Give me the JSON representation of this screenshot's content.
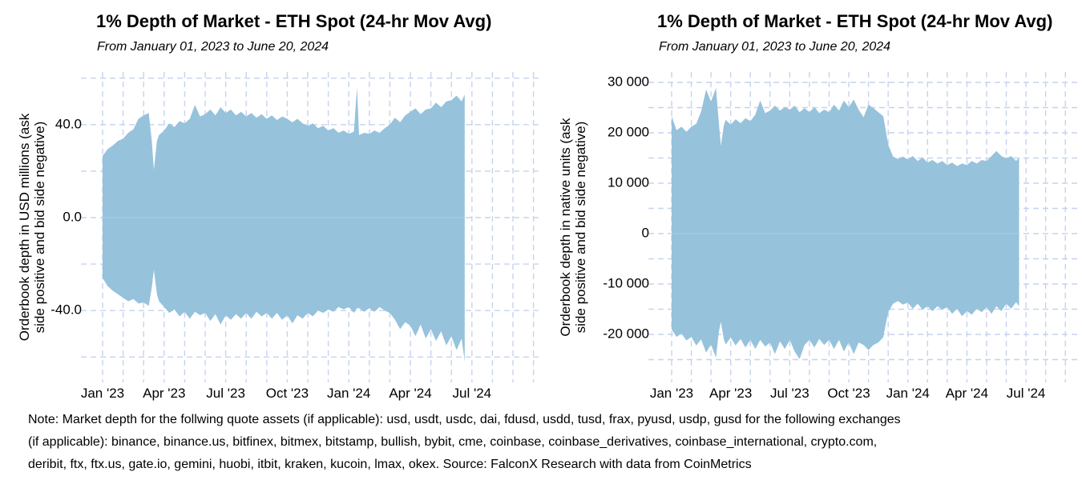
{
  "note": {
    "lines": [
      "Note: Market depth for the follwing quote assets (if applicable): usd, usdt, usdc, dai, fdusd, usdd, tusd, frax, pyusd, usdp, gusd for the following exchanges",
      "(if applicable): binance, binance.us, bitfinex, bitmex, bitstamp, bullish, bybit, cme, coinbase, coinbase_derivatives, coinbase_international, crypto.com,",
      "deribit, ftx, ftx.us, gate.io, gemini, huobi, itbit, kraken, kucoin, lmax, okex. Source: FalconX Research with data from CoinMetrics"
    ]
  },
  "chart_data": [
    {
      "type": "area",
      "title": "1% Depth of Market - ETH Spot (24-hr Mov Avg)",
      "subtitle": "From January 01, 2023 to June 20, 2024",
      "ylabel_lines": [
        "Orderbook depth in USD millions (ask",
        "side positive and bid side negative)"
      ],
      "x_unit": "months_since_2023_01_01",
      "x_tick_labels": [
        "Jan '23",
        "Apr '23",
        "Jul '23",
        "Oct '23",
        "Jan '24",
        "Apr '24",
        "Jul '24"
      ],
      "x_tick_months": [
        0,
        3,
        6,
        9,
        12,
        15,
        18
      ],
      "x_minor_grid_step_months": 1,
      "ylim": [
        -70,
        63
      ],
      "y_grid_step": 20,
      "y_grid_range": [
        -60,
        60
      ],
      "y_tick_labels": [
        {
          "value": 40,
          "label": "40.0"
        },
        {
          "value": 0,
          "label": "0.0"
        },
        {
          "value": -40,
          "label": "-40.0"
        }
      ],
      "grid": true,
      "grid_style": "dashed",
      "legend": "none",
      "colors": {
        "fill": "#96c2dc",
        "grid": "#c6d3ee",
        "zero_line": "#abcde3",
        "text": "#000000"
      },
      "series": {
        "x_months": [
          0,
          0.25,
          0.5,
          0.75,
          1,
          1.25,
          1.5,
          1.75,
          2,
          2.25,
          2.4,
          2.5,
          2.65,
          2.75,
          3,
          3.25,
          3.5,
          3.75,
          4,
          4.25,
          4.5,
          4.75,
          5,
          5.25,
          5.5,
          5.75,
          6,
          6.25,
          6.5,
          6.75,
          7,
          7.25,
          7.5,
          7.75,
          8,
          8.25,
          8.5,
          8.75,
          9,
          9.25,
          9.5,
          9.75,
          10,
          10.25,
          10.5,
          10.75,
          11,
          11.25,
          11.5,
          11.75,
          12,
          12.25,
          12.4,
          12.5,
          12.75,
          13,
          13.25,
          13.5,
          13.75,
          14,
          14.25,
          14.5,
          14.75,
          15,
          15.25,
          15.5,
          15.75,
          16,
          16.25,
          16.5,
          16.75,
          17,
          17.25,
          17.5,
          17.65
        ],
        "ask": [
          26.5,
          29.5,
          31,
          33,
          34,
          36.5,
          38,
          42.5,
          44,
          45,
          33,
          20.5,
          33,
          35.5,
          37.5,
          40.5,
          39,
          41.5,
          40.5,
          42.5,
          48.5,
          43.5,
          44.5,
          46.5,
          44,
          47.5,
          45,
          46.5,
          44,
          45.5,
          43.5,
          45,
          43,
          44.5,
          42.5,
          44,
          42,
          43.5,
          42.5,
          41,
          42.5,
          40.5,
          39.5,
          40.5,
          38.5,
          39.5,
          37.5,
          38.5,
          36.5,
          37.5,
          36,
          37,
          56,
          35.5,
          36.5,
          36,
          37.5,
          36.5,
          38.5,
          40,
          43,
          41,
          44,
          45.5,
          47,
          44.5,
          46.5,
          47,
          49.5,
          47.5,
          50,
          50.5,
          52.5,
          50,
          53
        ],
        "bid": [
          -26,
          -29.5,
          -31.5,
          -33,
          -34.5,
          -36,
          -35,
          -37,
          -36.5,
          -38,
          -30,
          -22.5,
          -33,
          -36,
          -38.5,
          -41,
          -39.5,
          -42.5,
          -40.5,
          -43.5,
          -40.5,
          -42,
          -41,
          -44.5,
          -41.5,
          -46,
          -42,
          -44,
          -41.5,
          -43.5,
          -41,
          -43.5,
          -40.5,
          -42.5,
          -41,
          -43.5,
          -41,
          -44,
          -42,
          -45.5,
          -42,
          -43.5,
          -41,
          -42.5,
          -40,
          -41,
          -39.5,
          -40.5,
          -38.5,
          -39.5,
          -38.5,
          -41,
          -39,
          -39,
          -40.5,
          -39,
          -40.5,
          -38.5,
          -40,
          -41,
          -44,
          -48,
          -45,
          -46.5,
          -51,
          -46,
          -52,
          -48,
          -53,
          -49,
          -55,
          -51,
          -57,
          -52,
          -62
        ]
      }
    },
    {
      "type": "area",
      "title": "1% Depth of Market - ETH Spot (24-hr Mov Avg)",
      "subtitle": "From January 01, 2023 to June 20, 2024",
      "ylabel_lines": [
        "Orderbook depth in native units (ask",
        "side positive and bid side negative)"
      ],
      "x_unit": "months_since_2023_01_01",
      "x_tick_labels": [
        "Jan '23",
        "Apr '23",
        "Jul '23",
        "Oct '23",
        "Jan '24",
        "Apr '24",
        "Jul '24"
      ],
      "x_tick_months": [
        0,
        3,
        6,
        9,
        12,
        15,
        18
      ],
      "x_minor_grid_step_months": 1,
      "ylim": [
        -29500,
        32000
      ],
      "y_grid_step": 5000,
      "y_grid_range": [
        -25000,
        30000
      ],
      "y_tick_labels": [
        {
          "value": 30000,
          "label": "30 000"
        },
        {
          "value": 20000,
          "label": "20 000"
        },
        {
          "value": 10000,
          "label": "10 000"
        },
        {
          "value": 0,
          "label": "0"
        },
        {
          "value": -10000,
          "label": "-10 000"
        },
        {
          "value": -20000,
          "label": "-20 000"
        }
      ],
      "grid": true,
      "grid_style": "dashed",
      "legend": "none",
      "colors": {
        "fill": "#96c2dc",
        "grid": "#c6d3ee",
        "zero_line": "#abcde3",
        "text": "#000000"
      },
      "series": {
        "x_months": [
          0,
          0.25,
          0.5,
          0.75,
          1,
          1.25,
          1.5,
          1.75,
          2,
          2.25,
          2.4,
          2.5,
          2.65,
          2.75,
          3,
          3.25,
          3.5,
          3.75,
          4,
          4.25,
          4.5,
          4.75,
          5,
          5.25,
          5.5,
          5.75,
          6,
          6.25,
          6.5,
          6.75,
          7,
          7.25,
          7.5,
          7.75,
          8,
          8.25,
          8.5,
          8.75,
          9,
          9.25,
          9.5,
          9.75,
          10,
          10.25,
          10.5,
          10.75,
          10.9,
          11,
          11.25,
          11.5,
          11.75,
          12,
          12.25,
          12.5,
          12.75,
          13,
          13.25,
          13.5,
          13.75,
          14,
          14.25,
          14.5,
          14.75,
          15,
          15.25,
          15.5,
          15.75,
          16,
          16.25,
          16.5,
          16.75,
          17,
          17.25,
          17.5,
          17.65
        ],
        "ask": [
          23300,
          20500,
          21200,
          20200,
          21200,
          21800,
          24200,
          28600,
          26200,
          28900,
          22000,
          17400,
          21500,
          22600,
          21600,
          22700,
          21900,
          22900,
          22300,
          23600,
          26400,
          23900,
          24400,
          25400,
          24400,
          25100,
          24600,
          25400,
          24100,
          24900,
          24100,
          25100,
          23900,
          24600,
          24100,
          25600,
          24400,
          26400,
          25100,
          26600,
          24600,
          23100,
          25600,
          24900,
          24100,
          23300,
          20000,
          17600,
          15300,
          14800,
          15300,
          14700,
          15400,
          14400,
          15100,
          14100,
          14600,
          13900,
          14400,
          13600,
          14100,
          13400,
          13900,
          13600,
          14400,
          13900,
          14600,
          14400,
          15400,
          16400,
          15400,
          14900,
          15400,
          14400,
          15100
        ],
        "bid": [
          -19000,
          -20500,
          -19800,
          -21200,
          -20500,
          -22200,
          -21000,
          -23600,
          -22000,
          -24600,
          -19500,
          -17500,
          -21000,
          -22000,
          -20600,
          -22200,
          -20900,
          -22600,
          -21100,
          -22900,
          -21100,
          -22400,
          -21600,
          -23900,
          -21400,
          -22900,
          -21100,
          -23400,
          -24900,
          -22100,
          -21100,
          -22600,
          -20900,
          -22100,
          -21100,
          -22900,
          -21100,
          -23400,
          -21600,
          -23900,
          -21600,
          -22100,
          -23100,
          -22100,
          -21600,
          -20600,
          -17500,
          -15600,
          -13900,
          -13400,
          -14100,
          -13700,
          -14900,
          -13900,
          -15100,
          -14400,
          -15400,
          -14400,
          -15100,
          -14600,
          -15900,
          -14900,
          -16400,
          -15400,
          -16100,
          -14900,
          -15600,
          -14600,
          -15900,
          -14400,
          -15400,
          -13900,
          -14900,
          -13600,
          -14400
        ]
      }
    }
  ]
}
